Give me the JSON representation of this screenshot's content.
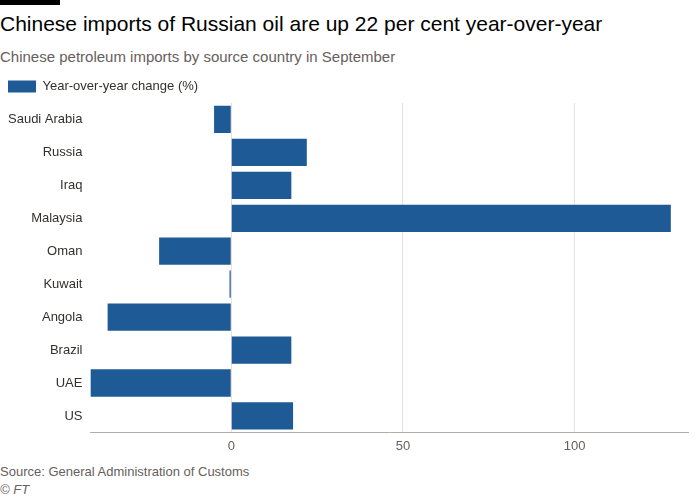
{
  "chart_data": {
    "type": "bar",
    "orientation": "horizontal",
    "title": "Chinese imports of Russian oil are up 22 per cent year-over-year",
    "subtitle": "Chinese petroleum imports by source country in September",
    "categories": [
      "Saudi Arabia",
      "Russia",
      "Iraq",
      "Malaysia",
      "Oman",
      "Kuwait",
      "Angola",
      "Brazil",
      "UAE",
      "US"
    ],
    "series": [
      {
        "name": "Year-over-year change (%)",
        "color": "#1e5a96",
        "values": [
          -5,
          22,
          17.5,
          128,
          -21,
          -0.5,
          -36,
          17.5,
          -41,
          18
        ]
      }
    ],
    "xlim": [
      -41,
      133
    ],
    "xticks": [
      0,
      50,
      100
    ],
    "grid": true,
    "legend": "top-left",
    "source": "Source: General Administration of Customs",
    "credit": "© FT"
  }
}
